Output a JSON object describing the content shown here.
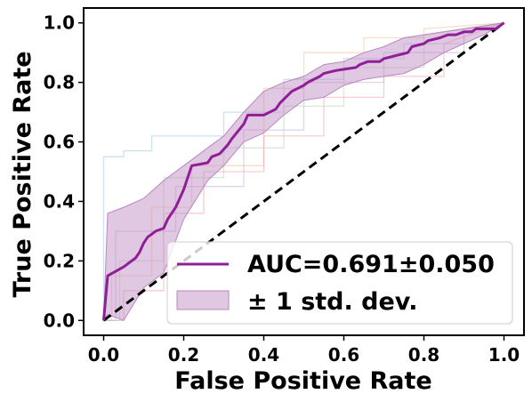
{
  "chart_data": {
    "type": "line",
    "xlabel": "False Positive Rate",
    "ylabel": "True Positive Rate",
    "xlim": [
      -0.05,
      1.05
    ],
    "ylim": [
      -0.05,
      1.05
    ],
    "xticks": [
      "0.0",
      "0.2",
      "0.4",
      "0.6",
      "0.8",
      "1.0"
    ],
    "yticks": [
      "0.0",
      "0.2",
      "0.4",
      "0.6",
      "0.8",
      "1.0"
    ],
    "grid": false,
    "legend_position": "lower-right",
    "legend": {
      "mean_label": "AUC=0.691±0.050",
      "band_label": "± 1 std. dev."
    },
    "colors": {
      "mean": "#8e1f96",
      "band": "#c290c6",
      "band_edge": "#b888bd",
      "diagonal": "#000000",
      "folds": [
        "#a6c8e6",
        "#f7c29b",
        "#f2a3ad",
        "#b8d8b4",
        "#c9b3dd"
      ]
    },
    "mean_curve": {
      "x": [
        0.0,
        0.01,
        0.05,
        0.08,
        0.09,
        0.1,
        0.11,
        0.12,
        0.13,
        0.15,
        0.16,
        0.18,
        0.2,
        0.22,
        0.26,
        0.27,
        0.29,
        0.31,
        0.32,
        0.35,
        0.36,
        0.4,
        0.43,
        0.44,
        0.47,
        0.5,
        0.51,
        0.54,
        0.55,
        0.58,
        0.63,
        0.64,
        0.66,
        0.69,
        0.7,
        0.73,
        0.76,
        0.77,
        0.8,
        0.81,
        0.84,
        0.86,
        0.88,
        0.9,
        0.92,
        0.93,
        0.96,
        0.98,
        1.0
      ],
      "y": [
        0.0,
        0.15,
        0.18,
        0.21,
        0.23,
        0.26,
        0.28,
        0.29,
        0.3,
        0.31,
        0.34,
        0.38,
        0.44,
        0.52,
        0.53,
        0.55,
        0.56,
        0.59,
        0.61,
        0.66,
        0.69,
        0.69,
        0.71,
        0.73,
        0.77,
        0.79,
        0.8,
        0.82,
        0.83,
        0.84,
        0.85,
        0.86,
        0.87,
        0.87,
        0.88,
        0.89,
        0.9,
        0.92,
        0.93,
        0.94,
        0.95,
        0.96,
        0.96,
        0.97,
        0.97,
        0.98,
        0.98,
        0.98,
        1.0
      ]
    },
    "band_upper": {
      "x": [
        0.0,
        0.01,
        0.05,
        0.1,
        0.15,
        0.2,
        0.26,
        0.3,
        0.35,
        0.4,
        0.45,
        0.5,
        0.55,
        0.6,
        0.65,
        0.7,
        0.75,
        0.8,
        0.85,
        0.9,
        0.95,
        1.0
      ],
      "y": [
        0.0,
        0.36,
        0.38,
        0.41,
        0.47,
        0.52,
        0.58,
        0.62,
        0.7,
        0.77,
        0.8,
        0.82,
        0.86,
        0.87,
        0.9,
        0.92,
        0.95,
        0.96,
        0.97,
        0.98,
        0.99,
        1.0
      ]
    },
    "band_lower": {
      "x": [
        0.0,
        0.01,
        0.05,
        0.1,
        0.15,
        0.2,
        0.26,
        0.3,
        0.35,
        0.4,
        0.45,
        0.5,
        0.55,
        0.6,
        0.65,
        0.7,
        0.75,
        0.8,
        0.85,
        0.9,
        0.95,
        1.0
      ],
      "y": [
        0.0,
        0.02,
        0.0,
        0.11,
        0.16,
        0.34,
        0.47,
        0.52,
        0.6,
        0.63,
        0.69,
        0.74,
        0.75,
        0.79,
        0.81,
        0.82,
        0.83,
        0.86,
        0.9,
        0.93,
        0.96,
        1.0
      ]
    },
    "fold_curves": [
      {
        "x": [
          0.0,
          0.0,
          0.05,
          0.05,
          0.12,
          0.12,
          0.3,
          0.3,
          0.45,
          0.45,
          0.6,
          0.6,
          0.75,
          0.75,
          0.9,
          0.9,
          1.0
        ],
        "y": [
          0.0,
          0.55,
          0.55,
          0.57,
          0.57,
          0.62,
          0.62,
          0.7,
          0.7,
          0.81,
          0.81,
          0.88,
          0.88,
          0.93,
          0.93,
          0.98,
          1.0
        ]
      },
      {
        "x": [
          0.0,
          0.02,
          0.02,
          0.12,
          0.12,
          0.22,
          0.22,
          0.4,
          0.4,
          0.5,
          0.5,
          0.65,
          0.65,
          0.8,
          0.8,
          1.0
        ],
        "y": [
          0.0,
          0.0,
          0.15,
          0.15,
          0.38,
          0.38,
          0.52,
          0.52,
          0.78,
          0.78,
          0.9,
          0.9,
          0.95,
          0.95,
          0.98,
          1.0
        ]
      },
      {
        "x": [
          0.0,
          0.05,
          0.05,
          0.15,
          0.15,
          0.25,
          0.25,
          0.4,
          0.4,
          0.55,
          0.55,
          0.7,
          0.7,
          0.85,
          0.85,
          1.0
        ],
        "y": [
          0.0,
          0.0,
          0.1,
          0.1,
          0.36,
          0.36,
          0.5,
          0.5,
          0.62,
          0.62,
          0.75,
          0.75,
          0.82,
          0.82,
          0.93,
          1.0
        ]
      },
      {
        "x": [
          0.0,
          0.04,
          0.04,
          0.15,
          0.15,
          0.3,
          0.3,
          0.45,
          0.45,
          0.6,
          0.6,
          0.8,
          0.8,
          1.0
        ],
        "y": [
          0.0,
          0.0,
          0.2,
          0.2,
          0.48,
          0.48,
          0.58,
          0.58,
          0.72,
          0.72,
          0.85,
          0.85,
          0.96,
          1.0
        ]
      },
      {
        "x": [
          0.0,
          0.03,
          0.03,
          0.18,
          0.18,
          0.35,
          0.35,
          0.5,
          0.5,
          0.7,
          0.7,
          0.9,
          0.9,
          1.0
        ],
        "y": [
          0.0,
          0.0,
          0.3,
          0.3,
          0.45,
          0.45,
          0.64,
          0.64,
          0.8,
          0.8,
          0.9,
          0.9,
          0.97,
          1.0
        ]
      }
    ],
    "diagonal": {
      "x": [
        0.0,
        1.0
      ],
      "y": [
        0.0,
        1.0
      ]
    }
  }
}
